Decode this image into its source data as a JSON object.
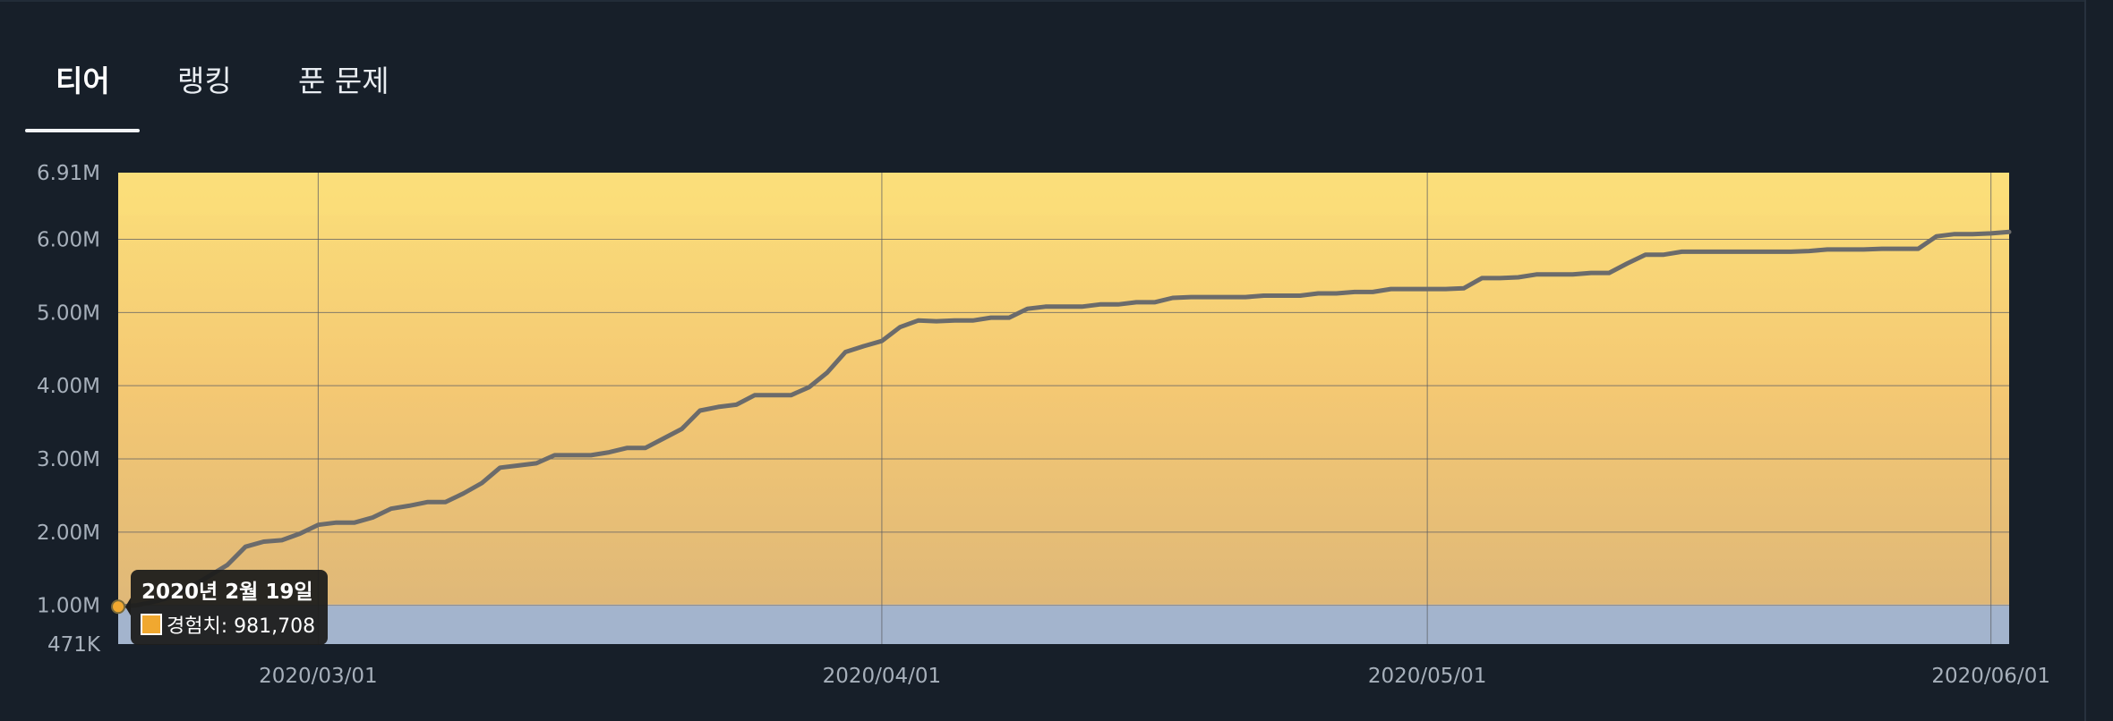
{
  "tabs": [
    {
      "label": "티어",
      "active": true
    },
    {
      "label": "랭킹",
      "active": false
    },
    {
      "label": "푼 문제",
      "active": false
    }
  ],
  "chart_data": {
    "type": "line",
    "title": "",
    "xlabel": "",
    "ylabel": "",
    "x_ticks": [
      "2020/03/01",
      "2020/04/01",
      "2020/05/01",
      "2020/06/01"
    ],
    "y_ticks": [
      "471K",
      "1.00M",
      "2.00M",
      "3.00M",
      "4.00M",
      "5.00M",
      "6.00M",
      "6.91M"
    ],
    "ylim": [
      471000,
      6910000
    ],
    "xlim": [
      "2020-02-19",
      "2020-06-02"
    ],
    "grid": true,
    "colors": {
      "line": "#6b6b6b",
      "band_low": "#a3b4cd",
      "band_mid": "#e3c184",
      "band_high": "#fbdf7a",
      "tooltip_bg": "#1e1e1c",
      "swatch": "#f0a830"
    },
    "series": [
      {
        "name": "경험치",
        "points": [
          [
            "2020-02-19",
            981708
          ],
          [
            "2020-02-20",
            1000000
          ],
          [
            "2020-02-21",
            1050000
          ],
          [
            "2020-02-22",
            1120000
          ],
          [
            "2020-02-23",
            1250000
          ],
          [
            "2020-02-24",
            1400000
          ],
          [
            "2020-02-25",
            1550000
          ],
          [
            "2020-02-26",
            1800000
          ],
          [
            "2020-02-27",
            1870000
          ],
          [
            "2020-02-28",
            1890000
          ],
          [
            "2020-02-29",
            1980000
          ],
          [
            "2020-03-01",
            2100000
          ],
          [
            "2020-03-02",
            2130000
          ],
          [
            "2020-03-03",
            2130000
          ],
          [
            "2020-03-04",
            2200000
          ],
          [
            "2020-03-05",
            2320000
          ],
          [
            "2020-03-06",
            2360000
          ],
          [
            "2020-03-07",
            2410000
          ],
          [
            "2020-03-08",
            2410000
          ],
          [
            "2020-03-09",
            2530000
          ],
          [
            "2020-03-10",
            2670000
          ],
          [
            "2020-03-11",
            2880000
          ],
          [
            "2020-03-12",
            2910000
          ],
          [
            "2020-03-13",
            2940000
          ],
          [
            "2020-03-14",
            3050000
          ],
          [
            "2020-03-15",
            3050000
          ],
          [
            "2020-03-16",
            3050000
          ],
          [
            "2020-03-17",
            3090000
          ],
          [
            "2020-03-18",
            3150000
          ],
          [
            "2020-03-19",
            3150000
          ],
          [
            "2020-03-20",
            3280000
          ],
          [
            "2020-03-21",
            3410000
          ],
          [
            "2020-03-22",
            3660000
          ],
          [
            "2020-03-23",
            3710000
          ],
          [
            "2020-03-24",
            3740000
          ],
          [
            "2020-03-25",
            3870000
          ],
          [
            "2020-03-26",
            3870000
          ],
          [
            "2020-03-27",
            3870000
          ],
          [
            "2020-03-28",
            3980000
          ],
          [
            "2020-03-29",
            4180000
          ],
          [
            "2020-03-30",
            4460000
          ],
          [
            "2020-03-31",
            4540000
          ],
          [
            "2020-04-01",
            4610000
          ],
          [
            "2020-04-02",
            4800000
          ],
          [
            "2020-04-03",
            4890000
          ],
          [
            "2020-04-04",
            4880000
          ],
          [
            "2020-04-05",
            4890000
          ],
          [
            "2020-04-06",
            4890000
          ],
          [
            "2020-04-07",
            4930000
          ],
          [
            "2020-04-08",
            4930000
          ],
          [
            "2020-04-09",
            5050000
          ],
          [
            "2020-04-10",
            5080000
          ],
          [
            "2020-04-11",
            5080000
          ],
          [
            "2020-04-12",
            5080000
          ],
          [
            "2020-04-13",
            5110000
          ],
          [
            "2020-04-14",
            5110000
          ],
          [
            "2020-04-15",
            5140000
          ],
          [
            "2020-04-16",
            5140000
          ],
          [
            "2020-04-17",
            5200000
          ],
          [
            "2020-04-18",
            5210000
          ],
          [
            "2020-04-19",
            5210000
          ],
          [
            "2020-04-20",
            5210000
          ],
          [
            "2020-04-21",
            5210000
          ],
          [
            "2020-04-22",
            5230000
          ],
          [
            "2020-04-23",
            5230000
          ],
          [
            "2020-04-24",
            5230000
          ],
          [
            "2020-04-25",
            5260000
          ],
          [
            "2020-04-26",
            5260000
          ],
          [
            "2020-04-27",
            5280000
          ],
          [
            "2020-04-28",
            5280000
          ],
          [
            "2020-04-29",
            5320000
          ],
          [
            "2020-04-30",
            5320000
          ],
          [
            "2020-05-01",
            5320000
          ],
          [
            "2020-05-02",
            5320000
          ],
          [
            "2020-05-03",
            5330000
          ],
          [
            "2020-05-04",
            5470000
          ],
          [
            "2020-05-05",
            5470000
          ],
          [
            "2020-05-06",
            5480000
          ],
          [
            "2020-05-07",
            5520000
          ],
          [
            "2020-05-08",
            5520000
          ],
          [
            "2020-05-09",
            5520000
          ],
          [
            "2020-05-10",
            5540000
          ],
          [
            "2020-05-11",
            5540000
          ],
          [
            "2020-05-12",
            5670000
          ],
          [
            "2020-05-13",
            5790000
          ],
          [
            "2020-05-14",
            5790000
          ],
          [
            "2020-05-15",
            5830000
          ],
          [
            "2020-05-16",
            5830000
          ],
          [
            "2020-05-17",
            5830000
          ],
          [
            "2020-05-18",
            5830000
          ],
          [
            "2020-05-19",
            5830000
          ],
          [
            "2020-05-20",
            5830000
          ],
          [
            "2020-05-21",
            5830000
          ],
          [
            "2020-05-22",
            5840000
          ],
          [
            "2020-05-23",
            5860000
          ],
          [
            "2020-05-24",
            5860000
          ],
          [
            "2020-05-25",
            5860000
          ],
          [
            "2020-05-26",
            5870000
          ],
          [
            "2020-05-27",
            5870000
          ],
          [
            "2020-05-28",
            5870000
          ],
          [
            "2020-05-29",
            6040000
          ],
          [
            "2020-05-30",
            6070000
          ],
          [
            "2020-05-31",
            6070000
          ],
          [
            "2020-06-01",
            6080000
          ],
          [
            "2020-06-02",
            6100000
          ]
        ]
      }
    ],
    "tooltip": {
      "title": "2020년 2월 19일",
      "label": "경험치: 981,708",
      "date": "2020-02-19",
      "value": 981708
    }
  }
}
